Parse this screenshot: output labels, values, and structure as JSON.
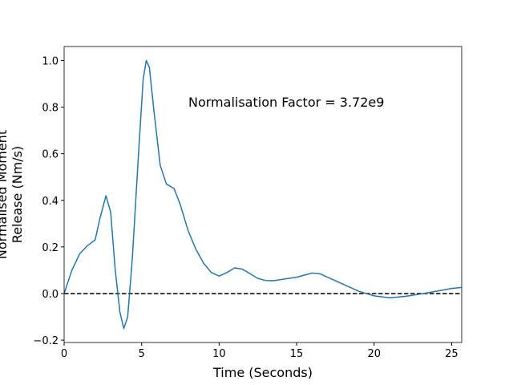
{
  "chart_data": {
    "type": "line",
    "xlabel": "Time (Seconds)",
    "ylabel": [
      "Normalised Moment",
      "Release (Nm/s)"
    ],
    "annotation": "Normalisation Factor = 3.72e9",
    "reference_line": 0,
    "x": [
      0,
      0.5,
      1.0,
      1.5,
      2.0,
      2.3,
      2.7,
      3.0,
      3.3,
      3.6,
      3.85,
      4.1,
      4.4,
      4.8,
      5.1,
      5.3,
      5.5,
      5.8,
      6.2,
      6.6,
      7.1,
      7.5,
      8.0,
      8.5,
      9.0,
      9.5,
      10.0,
      10.5,
      11.0,
      11.5,
      12.0,
      12.5,
      13.0,
      13.5,
      14.0,
      15.0,
      16.0,
      16.5,
      17.0,
      18.0,
      19.0,
      20.0,
      21.0,
      22.0,
      23.0,
      24.0,
      25.0,
      25.65
    ],
    "series": [
      {
        "color": "#1f77b4",
        "values": [
          0,
          0.1,
          0.17,
          0.205,
          0.23,
          0.32,
          0.42,
          0.35,
          0.1,
          -0.08,
          -0.15,
          -0.1,
          0.15,
          0.6,
          0.92,
          1.0,
          0.97,
          0.78,
          0.55,
          0.47,
          0.45,
          0.38,
          0.27,
          0.19,
          0.13,
          0.09,
          0.075,
          0.09,
          0.11,
          0.105,
          0.085,
          0.065,
          0.056,
          0.055,
          0.06,
          0.07,
          0.088,
          0.085,
          0.07,
          0.04,
          0.01,
          -0.01,
          -0.018,
          -0.012,
          -0.002,
          0.01,
          0.022,
          0.026
        ]
      }
    ],
    "xlim": [
      0,
      25.65
    ],
    "ylim": [
      -0.21,
      1.06
    ],
    "xticks": [
      0,
      5,
      10,
      15,
      20,
      25
    ],
    "yticks": [
      {
        "value": -0.2,
        "label": "−0.2"
      },
      {
        "value": 0,
        "label": "0.0"
      },
      0.2,
      0.4,
      0.6,
      0.8,
      {
        "value": 1.0,
        "label": "1.0"
      }
    ]
  }
}
